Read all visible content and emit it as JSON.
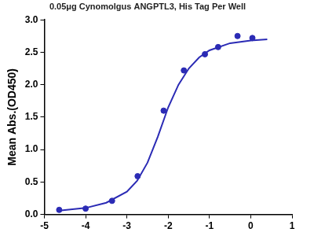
{
  "chart_data": {
    "type": "scatter",
    "title": "0.05μg Cynomolgus ANGPTL3, His Tag Per Well",
    "y_label": "Mean Abs.(OD450)",
    "xlim": [
      -5,
      1
    ],
    "xticks": [
      -5,
      -4,
      -3,
      -2,
      -1,
      0,
      1
    ],
    "ylim": [
      0,
      3
    ],
    "yticks": [
      {
        "value": 0,
        "label": "0.0"
      },
      {
        "value": 0.5,
        "label": "0.5"
      },
      {
        "value": 1,
        "label": "1.0"
      },
      {
        "value": 1.5,
        "label": "1.5"
      },
      {
        "value": 2,
        "label": "2.0"
      },
      {
        "value": 2.5,
        "label": "2.5"
      },
      {
        "value": 3,
        "label": "3.0"
      }
    ],
    "grid": false,
    "series": [
      {
        "type": "scatter",
        "color": "#2b2bb5",
        "marker": "circle",
        "x": [
          -4.64,
          -4.0,
          -3.36,
          -2.74,
          -2.11,
          -1.62,
          -1.11,
          -0.79,
          -0.32,
          0.04
        ],
        "values": [
          0.07,
          0.09,
          0.21,
          0.59,
          1.6,
          2.22,
          2.47,
          2.58,
          2.75,
          2.72
        ]
      },
      {
        "type": "line",
        "color": "#2b2bb5",
        "line_style": "solid",
        "x": [
          -4.64,
          -4.0,
          -3.5,
          -3.0,
          -2.75,
          -2.5,
          -2.25,
          -2.0,
          -1.75,
          -1.5,
          -1.25,
          -1.0,
          -0.5,
          0.0,
          0.4
        ],
        "values": [
          0.06,
          0.1,
          0.18,
          0.35,
          0.52,
          0.8,
          1.2,
          1.65,
          2.0,
          2.25,
          2.42,
          2.53,
          2.64,
          2.68,
          2.7
        ]
      }
    ]
  }
}
